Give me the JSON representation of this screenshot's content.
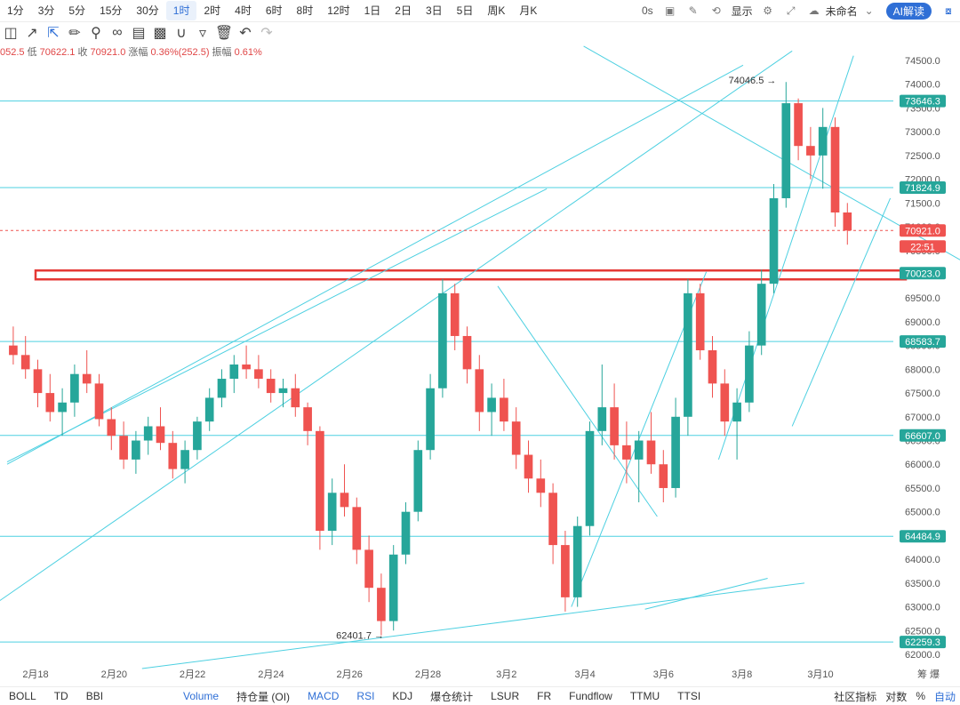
{
  "timeframes": [
    "1分",
    "3分",
    "5分",
    "15分",
    "30分",
    "1时",
    "2时",
    "4时",
    "6时",
    "8时",
    "12时",
    "1日",
    "2日",
    "3日",
    "5日",
    "周K",
    "月K"
  ],
  "active_timeframe": "1时",
  "topright": {
    "countdown": "0s",
    "display_label": "显示",
    "unnamed_label": "未命名",
    "ai_label": "AI解读"
  },
  "infobar": {
    "open": "052.5",
    "low_label": "低",
    "low": "70622.1",
    "close_label": "收",
    "close": "70921.0",
    "change_label": "涨幅",
    "change": "0.36%(252.5)",
    "amp_label": "振幅",
    "amp": "0.61%"
  },
  "bottom": {
    "left_items": [
      "BOLL",
      "TD",
      "BBI"
    ],
    "indicators": [
      "Volume",
      "持仓量 (OI)",
      "MACD",
      "RSI",
      "KDJ",
      "爆仓统计",
      "LSUR",
      "FR",
      "Fundflow",
      "TTMU",
      "TTSI"
    ],
    "active": [
      "Volume",
      "MACD",
      "RSI"
    ],
    "community": "社区指标",
    "log": "对数",
    "pct": "%",
    "auto": "自动"
  },
  "colors": {
    "up": "#26a69a",
    "down": "#ef5350",
    "line": "#4dd0e1",
    "label": "#26a69a",
    "box": "#e53935"
  },
  "chart_data": {
    "type": "candlestick",
    "x_ticks": [
      "2月18",
      "2月20",
      "2月22",
      "2月24",
      "2月26",
      "2月28",
      "3月2",
      "3月4",
      "3月6",
      "3月8",
      "3月10"
    ],
    "y_ticks": [
      62000,
      62500,
      63000,
      63500,
      64000,
      64500,
      65000,
      65500,
      66000,
      66500,
      67000,
      67500,
      68000,
      68500,
      69000,
      69500,
      70000,
      70500,
      71000,
      71500,
      72000,
      72500,
      73000,
      73500,
      74000,
      74500
    ],
    "y_range": [
      61900,
      74650
    ],
    "horizontal_levels": [
      73646.3,
      71824.9,
      68583.7,
      66607.0,
      64484.9,
      62259.3
    ],
    "current_price": "70921.0",
    "countdown": "22:51",
    "highlight_level": "70023.0",
    "annotations": {
      "high": "74046.5",
      "low": "62401.7"
    },
    "axis_corner": "筹 爆",
    "ohlc_approx": [
      [
        68500,
        68900,
        68100,
        68300
      ],
      [
        68300,
        68700,
        67800,
        68000
      ],
      [
        68000,
        68200,
        67200,
        67500
      ],
      [
        67500,
        67900,
        66900,
        67100
      ],
      [
        67100,
        67600,
        66600,
        67300
      ],
      [
        67300,
        68100,
        67000,
        67900
      ],
      [
        67900,
        68400,
        67500,
        67700
      ],
      [
        67700,
        67900,
        66800,
        66950
      ],
      [
        66950,
        67200,
        66300,
        66600
      ],
      [
        66600,
        66900,
        65900,
        66100
      ],
      [
        66100,
        66700,
        65800,
        66500
      ],
      [
        66500,
        67000,
        66200,
        66800
      ],
      [
        66800,
        67200,
        66300,
        66450
      ],
      [
        66450,
        66700,
        65700,
        65900
      ],
      [
        65900,
        66500,
        65600,
        66300
      ],
      [
        66300,
        67000,
        66100,
        66900
      ],
      [
        66900,
        67600,
        66700,
        67400
      ],
      [
        67400,
        68000,
        67200,
        67800
      ],
      [
        67800,
        68300,
        67500,
        68100
      ],
      [
        68100,
        68500,
        67800,
        68000
      ],
      [
        68000,
        68300,
        67600,
        67800
      ],
      [
        67800,
        68000,
        67300,
        67500
      ],
      [
        67500,
        67800,
        67200,
        67600
      ],
      [
        67600,
        67900,
        67000,
        67200
      ],
      [
        67200,
        67300,
        66400,
        66700
      ],
      [
        66700,
        66800,
        64200,
        64600
      ],
      [
        64600,
        65700,
        64300,
        65400
      ],
      [
        65400,
        66000,
        64900,
        65100
      ],
      [
        65100,
        65300,
        63900,
        64200
      ],
      [
        64200,
        64500,
        63100,
        63400
      ],
      [
        63400,
        63700,
        62400,
        62700
      ],
      [
        62700,
        64300,
        62500,
        64100
      ],
      [
        64100,
        65200,
        63900,
        65000
      ],
      [
        65000,
        66500,
        64800,
        66300
      ],
      [
        66300,
        67900,
        66100,
        67600
      ],
      [
        67600,
        69900,
        67400,
        69600
      ],
      [
        69600,
        69800,
        68400,
        68700
      ],
      [
        68700,
        68900,
        67700,
        68000
      ],
      [
        68000,
        68300,
        66700,
        67100
      ],
      [
        67100,
        67700,
        66600,
        67400
      ],
      [
        67400,
        67800,
        66700,
        66900
      ],
      [
        66900,
        67200,
        65900,
        66200
      ],
      [
        66200,
        66500,
        65400,
        65700
      ],
      [
        65700,
        66100,
        65100,
        65400
      ],
      [
        65400,
        65600,
        63900,
        64300
      ],
      [
        64300,
        64600,
        62900,
        63200
      ],
      [
        63200,
        64900,
        63000,
        64700
      ],
      [
        64700,
        66900,
        64500,
        66700
      ],
      [
        66700,
        68100,
        66400,
        67200
      ],
      [
        67200,
        67700,
        66100,
        66400
      ],
      [
        66400,
        66900,
        65600,
        66100
      ],
      [
        66100,
        66700,
        65200,
        66500
      ],
      [
        66500,
        67100,
        65800,
        66000
      ],
      [
        66000,
        66300,
        65200,
        65500
      ],
      [
        65500,
        67400,
        65300,
        67000
      ],
      [
        67000,
        69900,
        66600,
        69600
      ],
      [
        69600,
        69800,
        68200,
        68400
      ],
      [
        68400,
        68700,
        67400,
        67700
      ],
      [
        67700,
        68000,
        66600,
        66900
      ],
      [
        66900,
        67600,
        66100,
        67300
      ],
      [
        67300,
        68800,
        67100,
        68500
      ],
      [
        68500,
        70100,
        68300,
        69800
      ],
      [
        69800,
        71900,
        69600,
        71600
      ],
      [
        71600,
        74046.5,
        71400,
        73600
      ],
      [
        73600,
        73700,
        72400,
        72700
      ],
      [
        72700,
        73100,
        72000,
        72500
      ],
      [
        72500,
        73500,
        71800,
        73100
      ],
      [
        73100,
        73300,
        71000,
        71300
      ],
      [
        71300,
        71500,
        70622.1,
        70921
      ]
    ],
    "trend_lines": [
      [
        [
          0,
          66000
        ],
        [
          60,
          74400
        ]
      ],
      [
        [
          0,
          66050
        ],
        [
          44,
          71800
        ]
      ],
      [
        [
          -3,
          62700
        ],
        [
          64,
          74700
        ]
      ],
      [
        [
          40,
          69750
        ],
        [
          53,
          64900
        ]
      ],
      [
        [
          46,
          63000
        ],
        [
          57,
          70050
        ]
      ],
      [
        [
          58,
          66100
        ],
        [
          69,
          74600
        ]
      ],
      [
        [
          52,
          62950
        ],
        [
          62,
          63600
        ]
      ],
      [
        [
          47,
          74800
        ],
        [
          90,
          68500
        ]
      ],
      [
        [
          11,
          61700
        ],
        [
          65,
          63500
        ]
      ],
      [
        [
          64,
          66800
        ],
        [
          72,
          71600
        ]
      ]
    ]
  }
}
